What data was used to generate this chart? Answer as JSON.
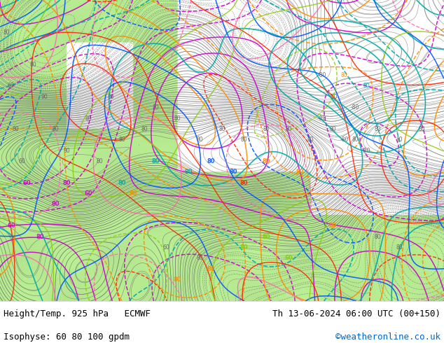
{
  "title_left": "Height/Temp. 925 hPa   ECMWF",
  "title_right": "Th 13-06-2024 06:00 UTC (00+150)",
  "subtitle_left": "Isophyse: 60 80 100 gpdm",
  "subtitle_right": "©weatheronline.co.uk",
  "subtitle_right_color": "#0066cc",
  "bg_color": "#ffffff",
  "text_color": "#000000",
  "fig_width": 6.34,
  "fig_height": 4.9,
  "dpi": 100,
  "font_size_title": 9,
  "font_size_subtitle": 9,
  "map_left_green": "#c8e8a0",
  "map_right_white": "#ffffff",
  "contour_gray": "#808080",
  "contour_dark": "#505050",
  "label_80_color": "#808080",
  "jet_band_color": "#606060",
  "sea_color": "#f5f5ff",
  "land_light": "#d0edb0",
  "land_medium": "#b8e090",
  "cyan_line": "#00aaaa",
  "magenta_line": "#cc00cc",
  "orange_line": "#ff8c00",
  "blue_line": "#0055ff",
  "red_line": "#ff2200",
  "yellow_green_line": "#88cc00",
  "pink_line": "#ff66aa",
  "green_line": "#00aa44"
}
